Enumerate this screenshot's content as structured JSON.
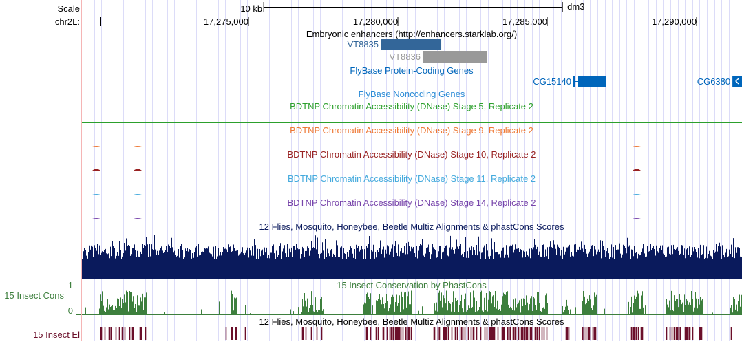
{
  "view": {
    "chrom": "chr2L",
    "start": 17269424,
    "end": 17291520
  },
  "header": {
    "scale_label": "Scale",
    "chrom_label": "chr2L:",
    "scale_bar_label": "10 kb",
    "scale_bar_bp": 10000,
    "scale_bar_start": 17275510,
    "assembly": "dm3"
  },
  "ticks": [
    {
      "pos": 17275000,
      "label": "17,275,000"
    },
    {
      "pos": 17280000,
      "label": "17,280,000"
    },
    {
      "pos": 17285000,
      "label": "17,285,000"
    },
    {
      "pos": 17290000,
      "label": "17,290,000"
    }
  ],
  "tracks": {
    "enhancers": {
      "title": "Embryonic enhancers (http://enhancers.starklab.org/)",
      "items": [
        {
          "name": "VT8835",
          "start": 17279424,
          "end": 17281452,
          "color": "#336699"
        },
        {
          "name": "VT8836",
          "start": 17280829,
          "end": 17282995,
          "color": "#999999"
        }
      ]
    },
    "protein_genes": {
      "title": "FlyBase Protein-Coding Genes",
      "color": "#0066bb",
      "items": [
        {
          "name": "CG15140",
          "start": 17285875,
          "end": 17286958
        },
        {
          "name": "CG6380",
          "start": 17291200,
          "end": 17291520,
          "strand": "-"
        }
      ]
    },
    "noncoding": {
      "title": "FlyBase Noncoding Genes",
      "color": "#2a8ad6"
    },
    "dnase": [
      {
        "title": "BDTNP Chromatin Accessibility (DNase) Stage 5, Replicate 2",
        "color": "#2ca02c"
      },
      {
        "title": "BDTNP Chromatin Accessibility (DNase) Stage 9, Replicate 2",
        "color": "#ee7733"
      },
      {
        "title": "BDTNP Chromatin Accessibility (DNase) Stage 10, Replicate 2",
        "color": "#992222"
      },
      {
        "title": "BDTNP Chromatin Accessibility (DNase) Stage 11, Replicate 2",
        "color": "#44aadd"
      },
      {
        "title": "BDTNP Chromatin Accessibility (DNase) Stage 14, Replicate 2",
        "color": "#7744aa"
      }
    ],
    "multiz": {
      "title": "12 Flies, Mosquito, Honeybee, Beetle Multiz Alignments & phastCons Scores",
      "color": "#0a1a5c"
    },
    "cons": {
      "title": "15 Insect Conservation by PhastCons",
      "side_label": "15 Insect Cons",
      "ymax": "1",
      "ymin": "0",
      "color": "#3d7f3d"
    },
    "elements": {
      "title": "12 Flies, Mosquito, Honeybee, Beetle Multiz Alignments & phastCons Scores",
      "side_label": "15 Insect El",
      "color": "#6b0f2a"
    }
  }
}
